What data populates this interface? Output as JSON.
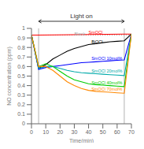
{
  "chart_data": {
    "type": "line",
    "title": "Light on",
    "xlabel": "Time(min)",
    "ylabel": "NO concentration (ppm)",
    "xlim": [
      0,
      70
    ],
    "ylim": [
      0,
      1.0
    ],
    "xticks": [
      0,
      10,
      20,
      30,
      40,
      50,
      60,
      70
    ],
    "yticks": [
      0,
      0.1,
      0.2,
      0.3,
      0.4,
      0.5,
      0.6,
      0.7,
      0.8,
      0.9,
      1
    ],
    "vlines": [
      5,
      65
    ],
    "grid": false,
    "series": [
      {
        "name": "Blank",
        "color": "#aaaaaa",
        "line_style": "dotted",
        "x": [
          0,
          5,
          65,
          70
        ],
        "values": [
          0.93,
          0.93,
          0.93,
          0.93
        ]
      },
      {
        "name": "SmOCl",
        "color": "#ff0000",
        "line_style": "solid",
        "x": [
          0,
          5,
          65,
          70
        ],
        "values": [
          0.93,
          0.93,
          0.94,
          0.94
        ]
      },
      {
        "name": "BiOCl",
        "color": "#000000",
        "line_style": "solid",
        "x": [
          0,
          5,
          10,
          15,
          20,
          25,
          30,
          35,
          40,
          45,
          50,
          55,
          60,
          65,
          70
        ],
        "values": [
          0.93,
          0.58,
          0.62,
          0.68,
          0.72,
          0.76,
          0.79,
          0.81,
          0.83,
          0.84,
          0.85,
          0.86,
          0.865,
          0.87,
          0.94
        ]
      },
      {
        "name": "SmOCl 10mol%",
        "color": "#0000ff",
        "line_style": "solid",
        "x": [
          0,
          5,
          10,
          15,
          20,
          25,
          30,
          35,
          40,
          45,
          50,
          55,
          60,
          65,
          70
        ],
        "values": [
          0.93,
          0.57,
          0.59,
          0.6,
          0.61,
          0.62,
          0.63,
          0.64,
          0.645,
          0.65,
          0.655,
          0.66,
          0.665,
          0.67,
          0.94
        ]
      },
      {
        "name": "SmOCl 20mol%",
        "color": "#00aaaa",
        "line_style": "solid",
        "x": [
          0,
          5,
          10,
          15,
          20,
          25,
          30,
          35,
          40,
          45,
          50,
          55,
          60,
          65,
          70
        ],
        "values": [
          0.93,
          0.58,
          0.6,
          0.6,
          0.58,
          0.56,
          0.545,
          0.535,
          0.53,
          0.525,
          0.52,
          0.515,
          0.51,
          0.505,
          0.94
        ]
      },
      {
        "name": "SmOCl 40mol%",
        "color": "#00cc00",
        "line_style": "solid",
        "x": [
          0,
          5,
          10,
          15,
          20,
          25,
          30,
          35,
          40,
          45,
          50,
          55,
          60,
          65,
          70
        ],
        "values": [
          0.93,
          0.6,
          0.63,
          0.6,
          0.55,
          0.5,
          0.46,
          0.44,
          0.42,
          0.41,
          0.405,
          0.4,
          0.395,
          0.39,
          0.94
        ]
      },
      {
        "name": "SmOCl 70mol%",
        "color": "#ff8800",
        "line_style": "solid",
        "x": [
          0,
          5,
          10,
          15,
          20,
          25,
          30,
          35,
          40,
          45,
          50,
          55,
          60,
          65,
          70
        ],
        "values": [
          0.93,
          0.6,
          0.6,
          0.56,
          0.5,
          0.44,
          0.4,
          0.37,
          0.35,
          0.34,
          0.335,
          0.33,
          0.325,
          0.32,
          0.94
        ]
      }
    ],
    "annotations": [
      {
        "text": "Blank",
        "x": 30,
        "y": 0.945,
        "color": "#aaaaaa"
      },
      {
        "text": "SmOCl",
        "x": 40,
        "y": 0.955,
        "color": "#ff0000"
      },
      {
        "text": "BiOCl",
        "x": 42,
        "y": 0.86,
        "color": "#000000"
      },
      {
        "text": "SmOCl 10mol%",
        "x": 42,
        "y": 0.69,
        "color": "#0000ff"
      },
      {
        "text": "SmOCl 20mol%",
        "x": 42,
        "y": 0.555,
        "color": "#00aaaa"
      },
      {
        "text": "SmOCl 40mol%",
        "x": 42,
        "y": 0.43,
        "color": "#00cc00"
      },
      {
        "text": "SmOCl 70mol%",
        "x": 42,
        "y": 0.365,
        "color": "#ff8800"
      }
    ]
  }
}
